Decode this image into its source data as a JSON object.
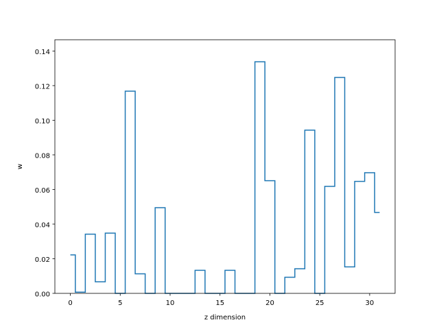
{
  "chart_data": {
    "type": "line",
    "drawstyle": "steps-mid",
    "title": "",
    "xlabel": "z dimension",
    "ylabel": "w",
    "xlim": [
      -1.55,
      32.55
    ],
    "ylim": [
      0,
      0.1465
    ],
    "xticks": [
      0,
      5,
      10,
      15,
      20,
      25,
      30
    ],
    "xtick_labels": [
      "0",
      "5",
      "10",
      "15",
      "20",
      "25",
      "30"
    ],
    "yticks": [
      0,
      0.02,
      0.04,
      0.06,
      0.08,
      0.1,
      0.12,
      0.14
    ],
    "ytick_labels": [
      "0.00",
      "0.02",
      "0.04",
      "0.06",
      "0.08",
      "0.10",
      "0.12",
      "0.14"
    ],
    "grid": false,
    "legend": "none",
    "series": [
      {
        "color": "#1f77b4",
        "x": [
          0,
          1,
          2,
          3,
          4,
          5,
          6,
          7,
          8,
          9,
          10,
          11,
          12,
          13,
          14,
          15,
          16,
          17,
          18,
          19,
          20,
          21,
          22,
          23,
          24,
          25,
          26,
          27,
          28,
          29,
          30,
          31
        ],
        "values": [
          0.0222,
          0.0007,
          0.0342,
          0.0067,
          0.0348,
          0.0,
          0.1168,
          0.0113,
          0.0,
          0.0495,
          0.0,
          0.0,
          0.0,
          0.0133,
          0.0,
          0.0,
          0.0133,
          0.0,
          0.0,
          0.1338,
          0.0651,
          0.0,
          0.0093,
          0.0142,
          0.0943,
          0.0,
          0.0618,
          0.1247,
          0.0153,
          0.0647,
          0.0697,
          0.0467
        ]
      }
    ]
  }
}
